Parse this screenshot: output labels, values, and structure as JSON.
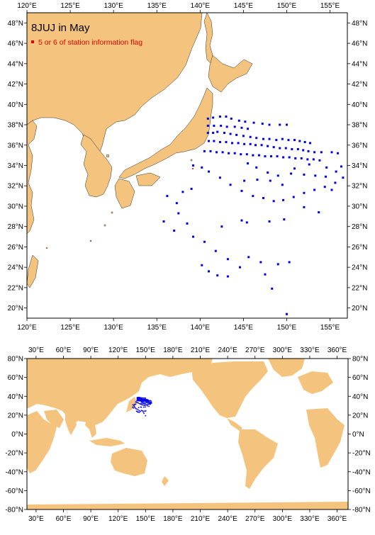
{
  "title": "8JUJ in May",
  "legend_label": "5 or 6 of station information flag",
  "colors": {
    "land": "#F4C47E",
    "station": "#0000EE",
    "flag": "#E00000"
  },
  "top_map": {
    "lon_ticks": [
      "120°E",
      "125°E",
      "130°E",
      "135°E",
      "140°E",
      "145°E",
      "150°E",
      "155°E"
    ],
    "lat_ticks": [
      "48°N",
      "46°N",
      "44°N",
      "42°N",
      "40°N",
      "38°N",
      "36°N",
      "34°N",
      "32°N",
      "30°N",
      "28°N",
      "26°N",
      "24°N",
      "22°N",
      "20°N"
    ],
    "lon_range": [
      120,
      157
    ],
    "lat_range": [
      19,
      49
    ],
    "stations": [
      [
        140.9,
        38.6
      ],
      [
        141.5,
        38.7
      ],
      [
        142.3,
        38.8
      ],
      [
        143.0,
        38.8
      ],
      [
        143.6,
        38.6
      ],
      [
        144.5,
        38.4
      ],
      [
        145.2,
        38.3
      ],
      [
        146.2,
        38.2
      ],
      [
        147.2,
        38.1
      ],
      [
        148.0,
        38.0
      ],
      [
        149.2,
        38.0
      ],
      [
        150.0,
        38.0
      ],
      [
        140.9,
        37.9
      ],
      [
        141.6,
        37.9
      ],
      [
        142.4,
        37.9
      ],
      [
        143.1,
        37.8
      ],
      [
        144.0,
        37.8
      ],
      [
        144.8,
        37.7
      ],
      [
        145.5,
        37.6
      ],
      [
        140.9,
        37.2
      ],
      [
        141.5,
        37.2
      ],
      [
        142.0,
        37.3
      ],
      [
        142.8,
        37.2
      ],
      [
        143.5,
        37.1
      ],
      [
        144.2,
        37.0
      ],
      [
        145.0,
        36.9
      ],
      [
        145.8,
        36.8
      ],
      [
        146.5,
        36.7
      ],
      [
        147.3,
        36.6
      ],
      [
        148.0,
        36.6
      ],
      [
        148.8,
        36.5
      ],
      [
        149.5,
        36.6
      ],
      [
        150.2,
        36.5
      ],
      [
        150.9,
        36.5
      ],
      [
        151.5,
        36.4
      ],
      [
        152.1,
        36.3
      ],
      [
        152.7,
        36.2
      ],
      [
        141.0,
        36.4
      ],
      [
        141.6,
        36.4
      ],
      [
        142.3,
        36.3
      ],
      [
        143.0,
        36.3
      ],
      [
        143.7,
        36.2
      ],
      [
        144.4,
        36.2
      ],
      [
        145.1,
        36.1
      ],
      [
        145.8,
        36.1
      ],
      [
        146.4,
        36.0
      ],
      [
        147.1,
        36.0
      ],
      [
        147.8,
        35.9
      ],
      [
        148.5,
        35.8
      ],
      [
        149.2,
        35.7
      ],
      [
        149.9,
        35.7
      ],
      [
        150.6,
        35.6
      ],
      [
        151.3,
        35.6
      ],
      [
        151.9,
        35.5
      ],
      [
        152.5,
        35.4
      ],
      [
        153.2,
        35.3
      ],
      [
        154.0,
        35.3
      ],
      [
        155.2,
        35.3
      ],
      [
        155.9,
        35.2
      ],
      [
        140.5,
        35.4
      ],
      [
        141.2,
        35.4
      ],
      [
        141.9,
        35.3
      ],
      [
        142.6,
        35.3
      ],
      [
        143.3,
        35.2
      ],
      [
        144.0,
        35.2
      ],
      [
        144.7,
        35.1
      ],
      [
        145.4,
        35.1
      ],
      [
        146.1,
        35.0
      ],
      [
        146.8,
        35.0
      ],
      [
        147.5,
        34.9
      ],
      [
        148.2,
        34.9
      ],
      [
        148.9,
        34.9
      ],
      [
        149.6,
        34.8
      ],
      [
        150.3,
        34.8
      ],
      [
        151.0,
        34.7
      ],
      [
        151.7,
        34.7
      ],
      [
        152.4,
        34.6
      ],
      [
        153.1,
        34.6
      ],
      [
        153.8,
        34.5
      ],
      [
        145.5,
        34.2
      ],
      [
        146.5,
        33.8
      ],
      [
        147.8,
        33.3
      ],
      [
        149.0,
        33.0
      ],
      [
        150.5,
        33.2
      ],
      [
        152.0,
        33.1
      ],
      [
        153.3,
        33.0
      ],
      [
        154.5,
        32.9
      ],
      [
        155.7,
        33.4
      ],
      [
        156.3,
        33.9
      ],
      [
        139.2,
        34.0
      ],
      [
        140.2,
        33.8
      ],
      [
        141.0,
        33.4
      ],
      [
        142.3,
        32.8
      ],
      [
        143.5,
        32.1
      ],
      [
        144.8,
        31.5
      ],
      [
        146.1,
        31.0
      ],
      [
        147.3,
        30.8
      ],
      [
        148.5,
        30.5
      ],
      [
        149.6,
        30.6
      ],
      [
        150.8,
        30.9
      ],
      [
        152.0,
        31.3
      ],
      [
        153.2,
        31.6
      ],
      [
        154.4,
        31.9
      ],
      [
        155.6,
        32.3
      ],
      [
        156.5,
        32.8
      ],
      [
        136.2,
        31.0
      ],
      [
        137.3,
        30.3
      ],
      [
        138.0,
        31.4
      ],
      [
        139.0,
        31.7
      ],
      [
        137.5,
        29.3
      ],
      [
        138.5,
        28.3
      ],
      [
        137.0,
        27.6
      ],
      [
        139.2,
        27.0
      ],
      [
        140.5,
        26.5
      ],
      [
        141.8,
        25.6
      ],
      [
        143.2,
        24.8
      ],
      [
        144.6,
        24.0
      ],
      [
        145.6,
        25.0
      ],
      [
        147.0,
        24.5
      ],
      [
        135.8,
        28.5
      ],
      [
        140.2,
        24.2
      ],
      [
        141.0,
        23.6
      ],
      [
        142.0,
        23.2
      ],
      [
        143.2,
        23.1
      ],
      [
        147.5,
        23.3
      ],
      [
        148.3,
        21.9
      ],
      [
        148.0,
        28.5
      ],
      [
        149.7,
        28.7
      ],
      [
        150.3,
        24.5
      ],
      [
        149.0,
        24.3
      ],
      [
        150.0,
        19.4
      ],
      [
        144.8,
        28.6
      ],
      [
        145.4,
        28.4
      ],
      [
        142.5,
        28.0
      ],
      [
        152.0,
        29.9
      ],
      [
        153.7,
        29.4
      ],
      [
        155.2,
        31.6
      ],
      [
        154.6,
        33.8
      ],
      [
        152.6,
        34.1
      ],
      [
        150.9,
        33.7
      ],
      [
        149.5,
        32.1
      ],
      [
        148.1,
        32.5
      ],
      [
        146.6,
        32.6
      ],
      [
        145.1,
        32.5
      ]
    ]
  },
  "world_map": {
    "lon_ticks": [
      "30°E",
      "60°E",
      "90°E",
      "120°E",
      "150°E",
      "180°E",
      "210°E",
      "240°E",
      "270°E",
      "300°E",
      "330°E",
      "360°E"
    ],
    "lat_ticks": [
      "80°N",
      "60°N",
      "40°N",
      "20°N",
      "0°N",
      "-20°N",
      "-40°N",
      "-60°N",
      "-80°N"
    ],
    "lon_range": [
      20,
      372
    ],
    "lat_range": [
      -80,
      80
    ]
  }
}
